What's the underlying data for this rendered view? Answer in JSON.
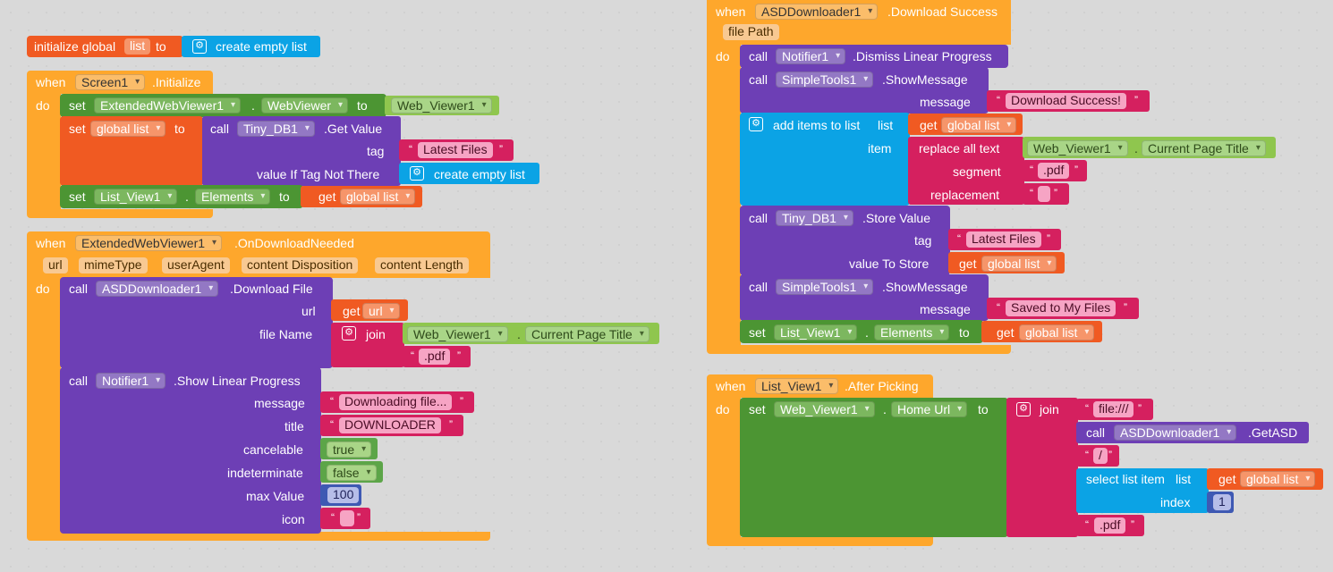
{
  "kw": {
    "when": "when",
    "do": "do",
    "call": "call",
    "set": "set",
    "to": "to",
    "get": "get",
    "dot": ".",
    "join": "join",
    "list": "list",
    "item": "item",
    "index": "index"
  },
  "init": {
    "prefix": "initialize global",
    "name": "list",
    "to": "to",
    "value": "create empty list"
  },
  "screen_init": {
    "component": "Screen1",
    "event": ".Initialize",
    "set1_component": "ExtendedWebViewer1",
    "set1_prop": "WebViewer",
    "set1_value": "Web_Viewer1",
    "set2_var": "global list",
    "db_component": "Tiny_DB1",
    "db_method": ".Get Value",
    "tag_label": "tag",
    "tag_value": "Latest Files",
    "value_label": "value If Tag Not There",
    "value_value": "create empty list",
    "set3_component": "List_View1",
    "set3_prop": "Elements",
    "set3_get": "global list"
  },
  "download_needed": {
    "component": "ExtendedWebViewer1",
    "event": ".OnDownloadNeeded",
    "params": [
      "url",
      "mimeType",
      "userAgent",
      "content Disposition",
      "content Length"
    ],
    "dl_component": "ASDDownloader1",
    "dl_method": ".Download File",
    "url_label": "url",
    "url_get": "url",
    "file_label": "file Name",
    "join_web": "Web_Viewer1",
    "join_prop": "Current Page Title",
    "join_ext": ".pdf",
    "notif_component": "Notifier1",
    "notif_method": ".Show Linear Progress",
    "message_label": "message",
    "message_value": "Downloading file...",
    "title_label": "title",
    "title_value": "DOWNLOADER",
    "cancel_label": "cancelable",
    "cancel_value": "true",
    "indet_label": "indeterminate",
    "indet_value": "false",
    "max_label": "max Value",
    "max_value": "100",
    "icon_label": "icon",
    "icon_value": ""
  },
  "download_success": {
    "component": "ASDDownloader1",
    "event": ".Download Success",
    "param": "file Path",
    "dismiss_component": "Notifier1",
    "dismiss_method": ".Dismiss Linear Progress",
    "show1_component": "SimpleTools1",
    "show1_method": ".ShowMessage",
    "show1_label": "message",
    "show1_value": "Download Success!",
    "add_label": "add items to list",
    "add_list_label": "list",
    "add_get": "global list",
    "add_item_label": "item",
    "replace_label": "replace all text",
    "replace_web": "Web_Viewer1",
    "replace_prop": "Current Page Title",
    "segment_label": "segment",
    "segment_value": ".pdf",
    "replacement_label": "replacement",
    "replacement_value": "",
    "store_component": "Tiny_DB1",
    "store_method": ".Store Value",
    "store_tag_label": "tag",
    "store_tag_value": "Latest Files",
    "store_val_label": "value To Store",
    "store_val_get": "global list",
    "show2_component": "SimpleTools1",
    "show2_method": ".ShowMessage",
    "show2_label": "message",
    "show2_value": "Saved to My Files",
    "set_component": "List_View1",
    "set_prop": "Elements",
    "set_get": "global list"
  },
  "after_picking": {
    "component": "List_View1",
    "event": ".After Picking",
    "set_component": "Web_Viewer1",
    "set_prop": "Home Url",
    "join1": "file:///",
    "call_component": "ASDDownloader1",
    "call_method": ".GetASD",
    "join3": "/",
    "select_label": "select list item",
    "select_list_label": "list",
    "select_get": "global list",
    "index_label": "index",
    "index_value": "1",
    "join5": ".pdf"
  }
}
